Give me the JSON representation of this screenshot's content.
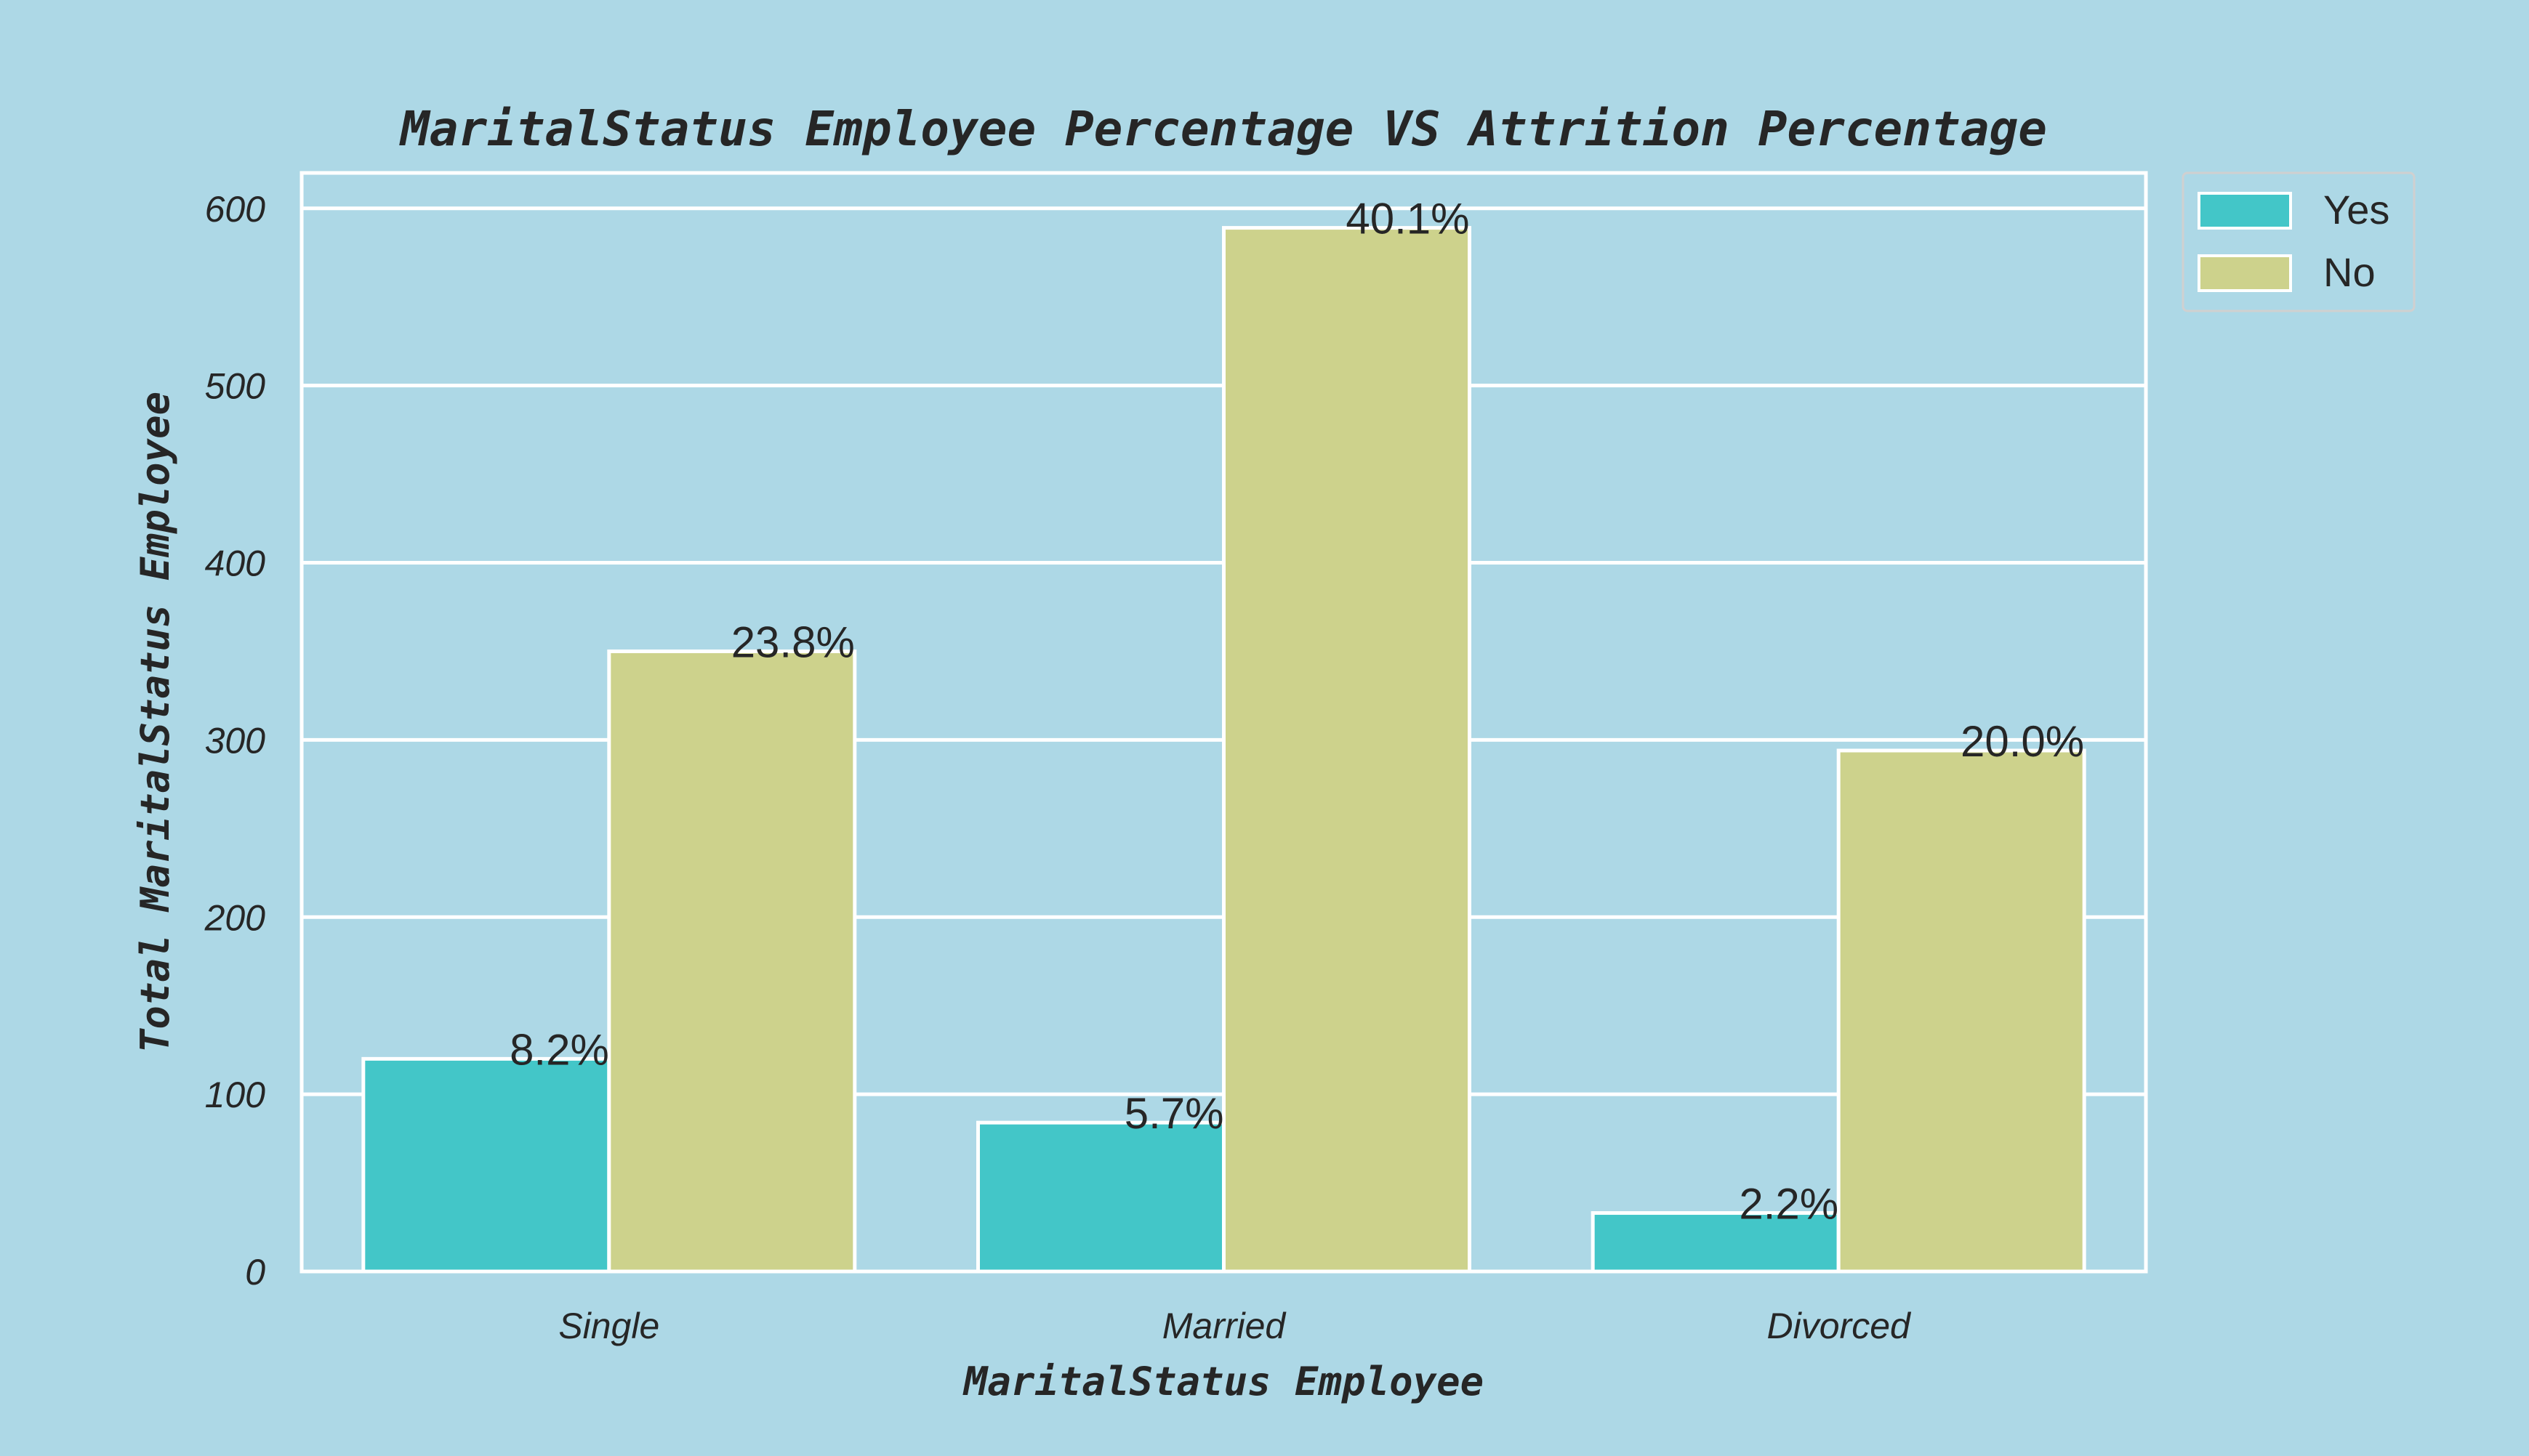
{
  "chart_data": {
    "type": "bar",
    "title": "MaritalStatus Employee Percentage VS Attrition Percentage",
    "xlabel": "MaritalStatus Employee",
    "ylabel": "Total MaritalStatus Employee",
    "categories": [
      "Single",
      "Married",
      "Divorced"
    ],
    "series": [
      {
        "name": "Yes",
        "values": [
          120,
          84,
          33
        ],
        "labels": [
          "8.2%",
          "5.7%",
          "2.2%"
        ],
        "color": "#43c6c8"
      },
      {
        "name": "No",
        "values": [
          350,
          589,
          294
        ],
        "labels": [
          "23.8%",
          "40.1%",
          "20.0%"
        ],
        "color": "#cdd28c"
      }
    ],
    "yticks": [
      0,
      100,
      200,
      300,
      400,
      500,
      600
    ],
    "ylim": [
      0,
      620
    ],
    "grid": true,
    "legend_position": "outside-top-right"
  },
  "colors": {
    "background": "#add8e6",
    "grid": "#ffffff",
    "text": "#262626"
  }
}
